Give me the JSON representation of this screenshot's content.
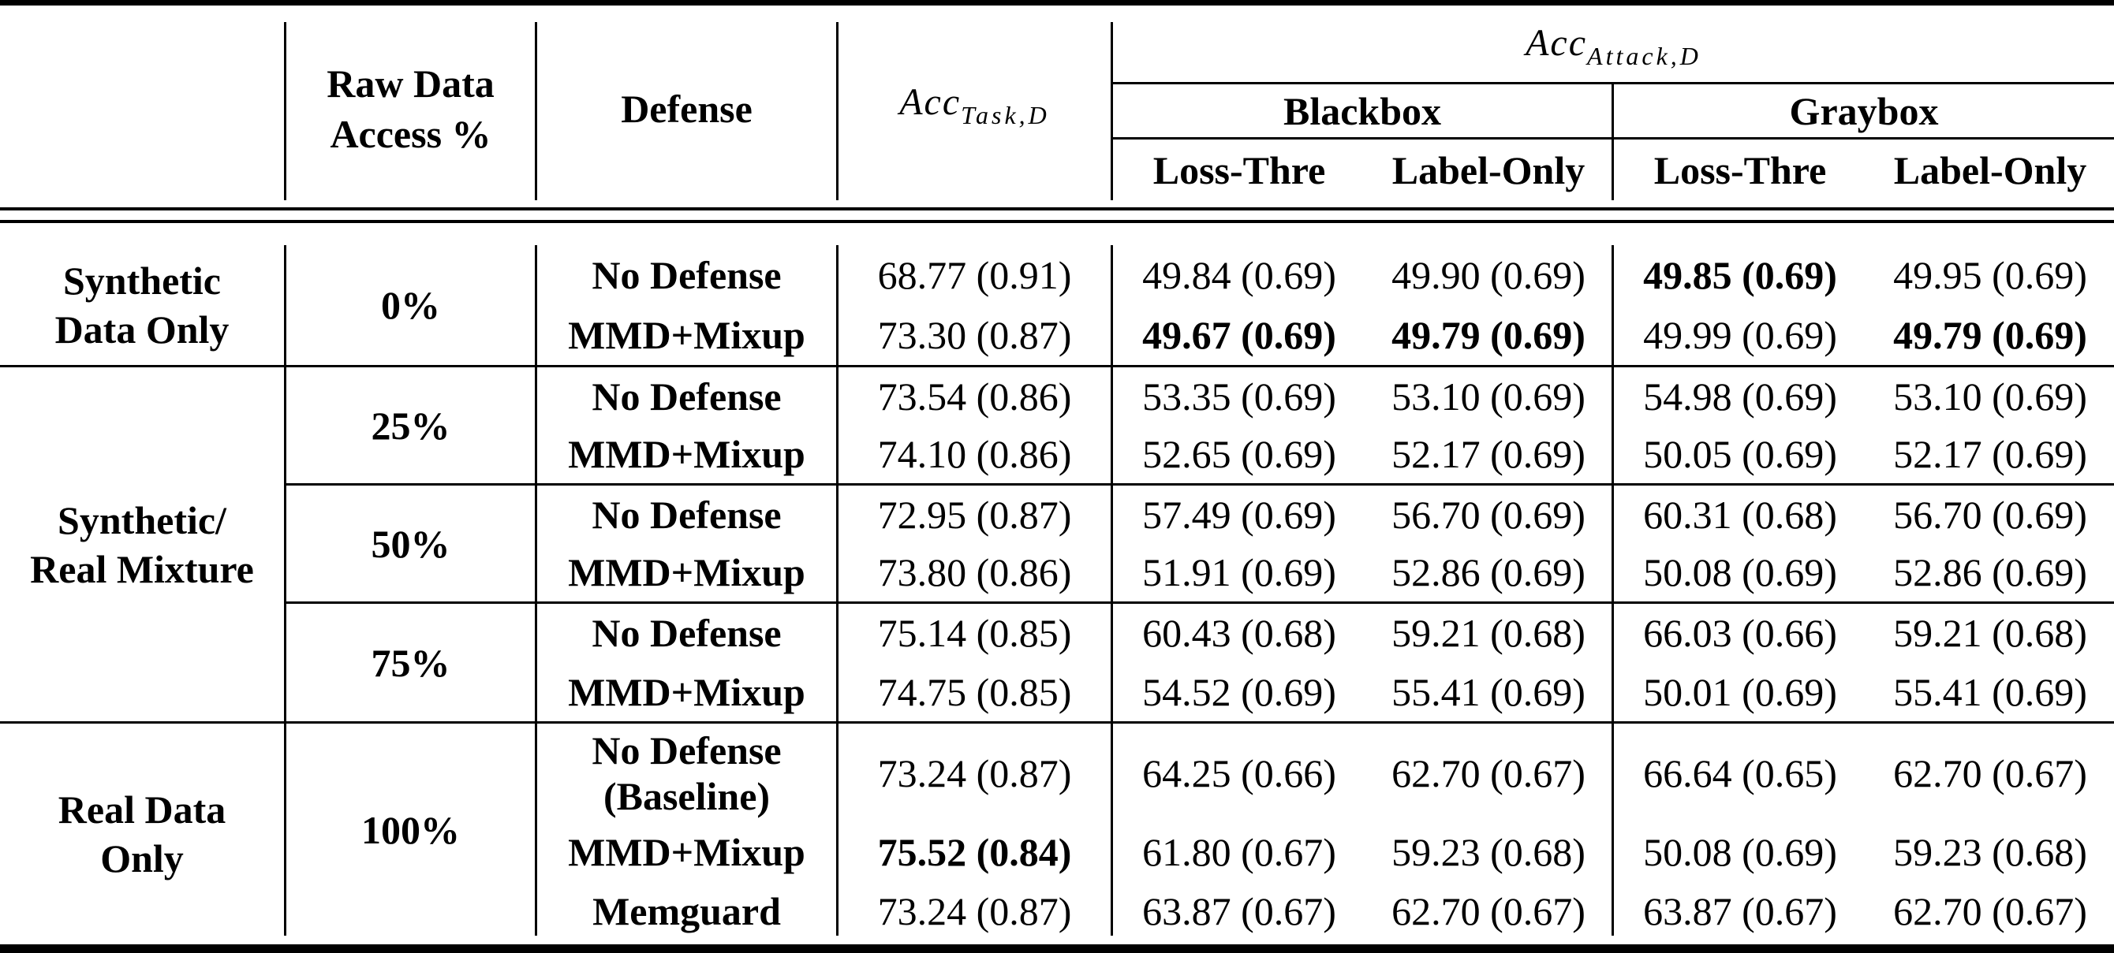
{
  "header": {
    "raw_access": "Raw Data Access %",
    "defense": "Defense",
    "acc_task_main": "Acc",
    "acc_task_sub": "Task,D",
    "acc_attack_main": "Acc",
    "acc_attack_sub": "Attack,D",
    "blackbox": "Blackbox",
    "graybox": "Graybox",
    "bb_loss": "Loss-Thre",
    "bb_label": "Label-Only",
    "gb_loss": "Loss-Thre",
    "gb_label": "Label-Only"
  },
  "groups": [
    {
      "label_line1": "Synthetic",
      "label_line2": "Data Only"
    },
    {
      "label_line1": "Synthetic/",
      "label_line2": "Real Mixture"
    },
    {
      "label_line1": "Real Data",
      "label_line2": "Only"
    }
  ],
  "access": [
    "0%",
    "25%",
    "50%",
    "75%",
    "100%"
  ],
  "rows": [
    {
      "defense": "No Defense",
      "task": "68.77 (0.91)",
      "bb_loss": "49.84 (0.69)",
      "bb_label": "49.90 (0.69)",
      "gb_loss": "49.85 (0.69)",
      "gb_label": "49.95 (0.69)"
    },
    {
      "defense": "MMD+Mixup",
      "task": "73.30 (0.87)",
      "bb_loss": "49.67 (0.69)",
      "bb_label": "49.79 (0.69)",
      "gb_loss": "49.99 (0.69)",
      "gb_label": "49.79 (0.69)"
    },
    {
      "defense": "No Defense",
      "task": "73.54 (0.86)",
      "bb_loss": "53.35 (0.69)",
      "bb_label": "53.10 (0.69)",
      "gb_loss": "54.98 (0.69)",
      "gb_label": "53.10 (0.69)"
    },
    {
      "defense": "MMD+Mixup",
      "task": "74.10 (0.86)",
      "bb_loss": "52.65 (0.69)",
      "bb_label": "52.17 (0.69)",
      "gb_loss": "50.05 (0.69)",
      "gb_label": "52.17 (0.69)"
    },
    {
      "defense": "No Defense",
      "task": "72.95 (0.87)",
      "bb_loss": "57.49 (0.69)",
      "bb_label": "56.70 (0.69)",
      "gb_loss": "60.31 (0.68)",
      "gb_label": "56.70 (0.69)"
    },
    {
      "defense": "MMD+Mixup",
      "task": "73.80 (0.86)",
      "bb_loss": "51.91 (0.69)",
      "bb_label": "52.86 (0.69)",
      "gb_loss": "50.08 (0.69)",
      "gb_label": "52.86 (0.69)"
    },
    {
      "defense": "No Defense",
      "task": "75.14 (0.85)",
      "bb_loss": "60.43 (0.68)",
      "bb_label": "59.21 (0.68)",
      "gb_loss": "66.03 (0.66)",
      "gb_label": "59.21 (0.68)"
    },
    {
      "defense": "MMD+Mixup",
      "task": "74.75 (0.85)",
      "bb_loss": "54.52 (0.69)",
      "bb_label": "55.41 (0.69)",
      "gb_loss": "50.01 (0.69)",
      "gb_label": "55.41 (0.69)"
    },
    {
      "defense": "No Defense",
      "defense_line2": "(Baseline)",
      "task": "73.24 (0.87)",
      "bb_loss": "64.25 (0.66)",
      "bb_label": "62.70 (0.67)",
      "gb_loss": "66.64 (0.65)",
      "gb_label": "62.70 (0.67)"
    },
    {
      "defense": "MMD+Mixup",
      "task": "75.52 (0.84)",
      "bb_loss": "61.80 (0.67)",
      "bb_label": "59.23 (0.68)",
      "gb_loss": "50.08 (0.69)",
      "gb_label": "59.23 (0.68)"
    },
    {
      "defense": "Memguard",
      "task": "73.24 (0.87)",
      "bb_loss": "63.87 (0.67)",
      "bb_label": "62.70 (0.67)",
      "gb_loss": "63.87 (0.67)",
      "gb_label": "62.70 (0.67)"
    }
  ]
}
